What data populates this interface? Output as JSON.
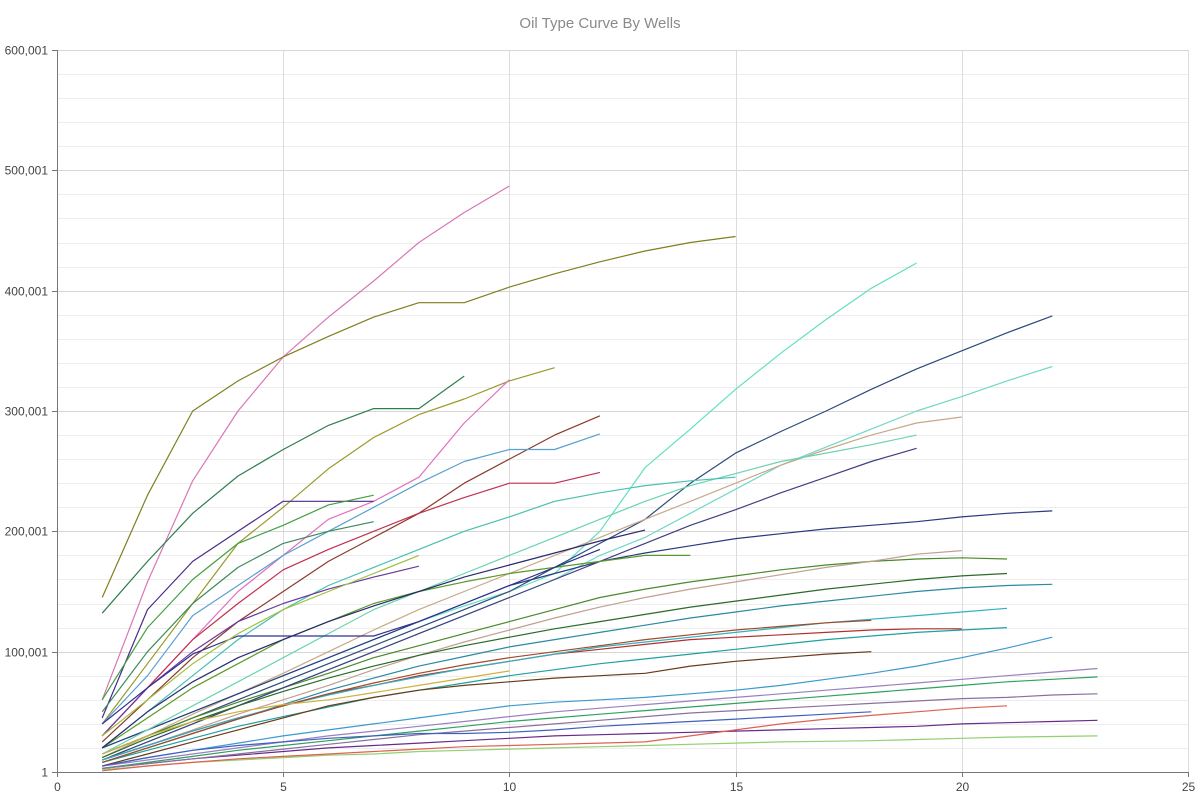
{
  "chart_data": {
    "type": "line",
    "title": "Oil Type Curve By Wells",
    "xlabel": "",
    "ylabel": "",
    "xlim": [
      0,
      25
    ],
    "ylim": [
      1,
      600001
    ],
    "x_ticks": [
      "0",
      "5",
      "10",
      "15",
      "20",
      "25"
    ],
    "y_ticks": [
      "1",
      "100,001",
      "200,001",
      "300,001",
      "400,001",
      "500,001",
      "600,001"
    ],
    "grid": true,
    "legend": "none",
    "x_start": 1,
    "series": [
      {
        "color": "#d977b5",
        "values": [
          60000,
          158000,
          242000,
          300000,
          345000,
          378000,
          408000,
          440000,
          465000,
          487000
        ]
      },
      {
        "color": "#7f7f1f",
        "values": [
          145000,
          230000,
          300000,
          325000,
          345000,
          362000,
          378000,
          390000,
          390000,
          403000,
          414000,
          424000,
          433000,
          440000,
          445000
        ]
      },
      {
        "color": "#5fe0c0",
        "values": [
          20000,
          35000,
          50000,
          65000,
          80000,
          95000,
          110000,
          125000,
          138000,
          150000,
          165000,
          200000,
          253000,
          285000,
          318000,
          348000,
          376000,
          402000,
          423000
        ]
      },
      {
        "color": "#2c4a7a",
        "values": [
          15000,
          30000,
          45000,
          60000,
          75000,
          90000,
          105000,
          120000,
          135000,
          150000,
          170000,
          190000,
          210000,
          240000,
          265000,
          283000,
          300000,
          318000,
          335000,
          350000,
          365000,
          379000
        ]
      },
      {
        "color": "#70d8c8",
        "values": [
          10000,
          25000,
          40000,
          55000,
          70000,
          85000,
          100000,
          115000,
          130000,
          145000,
          160000,
          180000,
          195000,
          215000,
          235000,
          255000,
          270000,
          285000,
          300000,
          312000,
          325000,
          337000
        ]
      },
      {
        "color": "#c8a88a",
        "values": [
          12000,
          30000,
          48000,
          65000,
          82000,
          100000,
          118000,
          135000,
          150000,
          165000,
          180000,
          195000,
          210000,
          225000,
          240000,
          255000,
          268000,
          280000,
          290000,
          295000
        ]
      },
      {
        "color": "#2e7d4f",
        "values": [
          132000,
          175000,
          215000,
          246000,
          268000,
          288000,
          302000,
          302000,
          329000
        ]
      },
      {
        "color": "#9a9a2a",
        "values": [
          40000,
          90000,
          140000,
          190000,
          220000,
          252000,
          278000,
          297000,
          310000,
          325000,
          336000
        ]
      },
      {
        "color": "#e070c0",
        "values": [
          30000,
          70000,
          110000,
          150000,
          180000,
          210000,
          225000,
          245000,
          290000,
          326000
        ]
      },
      {
        "color": "#8b3a2a",
        "values": [
          25000,
          60000,
          95000,
          125000,
          150000,
          175000,
          195000,
          215000,
          240000,
          260000,
          280000,
          296000
        ]
      },
      {
        "color": "#5aa0d0",
        "values": [
          40000,
          80000,
          130000,
          155000,
          180000,
          200000,
          220000,
          240000,
          258000,
          268000,
          268000,
          281000
        ]
      },
      {
        "color": "#c03050",
        "values": [
          30000,
          70000,
          110000,
          140000,
          168000,
          185000,
          200000,
          215000,
          228000,
          240000,
          240000,
          249000
        ]
      },
      {
        "color": "#283a80",
        "values": [
          20000,
          35000,
          50000,
          65000,
          80000,
          95000,
          110000,
          125000,
          140000,
          155000,
          165000,
          175000,
          182000,
          188000,
          194000,
          198000,
          202000,
          205000,
          208000,
          212000,
          215000,
          217000
        ]
      },
      {
        "color": "#4a8a2a",
        "values": [
          15000,
          30000,
          45000,
          58000,
          70000,
          82000,
          95000,
          105000,
          115000,
          125000,
          135000,
          145000,
          152000,
          158000,
          163000,
          168000,
          172000,
          175000,
          177000,
          178000,
          177000
        ]
      },
      {
        "color": "#6ad4b0",
        "values": [
          15000,
          35000,
          55000,
          75000,
          95000,
          115000,
          135000,
          150000,
          165000,
          180000,
          195000,
          210000,
          225000,
          238000,
          248000,
          258000,
          265000,
          272000,
          280000
        ]
      },
      {
        "color": "#404080",
        "values": [
          10000,
          25000,
          40000,
          55000,
          70000,
          85000,
          100000,
          115000,
          130000,
          145000,
          160000,
          175000,
          190000,
          205000,
          218000,
          232000,
          245000,
          258000,
          269000
        ]
      },
      {
        "color": "#4b2a8a",
        "values": [
          45000,
          135000,
          175000,
          200000,
          225000,
          225000,
          225000
        ]
      },
      {
        "color": "#40a040",
        "values": [
          60000,
          120000,
          160000,
          190000,
          205000,
          222000,
          230000
        ]
      },
      {
        "color": "#3a8a5a",
        "values": [
          50000,
          100000,
          140000,
          170000,
          190000,
          200000,
          208000
        ]
      },
      {
        "color": "#48c0b0",
        "values": [
          20000,
          50000,
          80000,
          110000,
          135000,
          155000,
          170000,
          185000,
          200000,
          212000,
          225000,
          232000,
          238000,
          242000,
          245000
        ]
      },
      {
        "color": "#5a9a2a",
        "values": [
          20000,
          45000,
          70000,
          90000,
          110000,
          125000,
          140000,
          150000,
          158000,
          165000,
          170000,
          175000,
          180000,
          180000
        ]
      },
      {
        "color": "#c0a090",
        "values": [
          10000,
          22000,
          35000,
          48000,
          60000,
          72000,
          85000,
          97000,
          108000,
          118000,
          128000,
          137000,
          145000,
          152000,
          158000,
          164000,
          170000,
          175000,
          181000,
          184000
        ]
      },
      {
        "color": "#2a8aa0",
        "values": [
          8000,
          20000,
          32000,
          44000,
          56000,
          68000,
          78000,
          88000,
          96000,
          104000,
          110000,
          116000,
          122000,
          128000,
          133000,
          138000,
          142000,
          146000,
          150000,
          153000,
          155000,
          156000
        ]
      },
      {
        "color": "#3a9ad0",
        "values": [
          5000,
          12000,
          18000,
          24000,
          30000,
          35000,
          40000,
          45000,
          50000,
          55000,
          58000,
          60000,
          62000,
          65000,
          68000,
          72000,
          77000,
          82000,
          88000,
          95000,
          103000,
          112000
        ]
      },
      {
        "color": "#9a80c0",
        "values": [
          5000,
          10000,
          15000,
          20000,
          25000,
          30000,
          34000,
          38000,
          42000,
          46000,
          50000,
          53000,
          56000,
          59000,
          62000,
          65000,
          68000,
          71000,
          74000,
          77000,
          80000,
          83000,
          86000
        ]
      },
      {
        "color": "#90d070",
        "values": [
          2000,
          5000,
          8000,
          10000,
          12000,
          14000,
          15000,
          17000,
          18000,
          19000,
          20000,
          21000,
          22000,
          23000,
          24000,
          25000,
          25500,
          26000,
          27000,
          28000,
          29000,
          29500,
          30000
        ]
      },
      {
        "color": "#6a2a8a",
        "values": [
          3000,
          7000,
          11000,
          14000,
          17000,
          20000,
          22000,
          24000,
          26000,
          28000,
          30000,
          31000,
          32000,
          33000,
          34000,
          35000,
          36000,
          37000,
          38000,
          40000,
          41000,
          42000,
          43000
        ]
      },
      {
        "color": "#e06050",
        "values": [
          1000,
          5000,
          8000,
          11000,
          13000,
          15000,
          17000,
          19000,
          21000,
          22000,
          23000,
          24000,
          25000,
          30000,
          35000,
          40000,
          44000,
          47000,
          50000,
          53000,
          55000
        ]
      },
      {
        "color": "#20a0a0",
        "values": [
          8000,
          18000,
          28000,
          38000,
          46000,
          54000,
          62000,
          68000,
          74000,
          80000,
          85000,
          90000,
          94000,
          98000,
          102000,
          106000,
          110000,
          113000,
          116000,
          118000,
          120000
        ]
      },
      {
        "color": "#30a060",
        "values": [
          3000,
          8000,
          13000,
          18000,
          22000,
          26000,
          30000,
          34000,
          38000,
          42000,
          45000,
          48000,
          51000,
          54000,
          57000,
          60000,
          63000,
          66000,
          69000,
          72000,
          75000,
          77000,
          79000
        ]
      },
      {
        "color": "#6a3a1a",
        "values": [
          5000,
          15000,
          25000,
          35000,
          45000,
          55000,
          62000,
          68000,
          72000,
          75000,
          78000,
          80000,
          82000,
          88000,
          92000,
          95000,
          98000,
          100000
        ]
      },
      {
        "color": "#b03030",
        "values": [
          10000,
          22000,
          34000,
          45000,
          55000,
          65000,
          72000,
          80000,
          86000,
          92000,
          98000,
          102000,
          106000,
          110000,
          112000,
          114000,
          116000,
          118000,
          119000,
          119000
        ]
      },
      {
        "color": "#6a3aa0",
        "values": [
          30000,
          70000,
          100000,
          125000,
          140000,
          152000,
          162000,
          171000
        ]
      },
      {
        "color": "#2a2a70",
        "values": [
          20000,
          50000,
          75000,
          95000,
          110000,
          125000,
          138000,
          150000,
          162000,
          172000,
          182000,
          192000,
          201000
        ]
      },
      {
        "color": "#30b0c0",
        "values": [
          10000,
          22000,
          34000,
          45000,
          55000,
          64000,
          72000,
          79000,
          86000,
          92000,
          98000,
          104000,
          108000,
          112000,
          116000,
          120000,
          124000,
          127000,
          130000,
          133000,
          136000
        ]
      },
      {
        "color": "#2a6a2a",
        "values": [
          12000,
          28000,
          42000,
          55000,
          67000,
          78000,
          88000,
          97000,
          105000,
          112000,
          119000,
          125000,
          131000,
          137000,
          142000,
          147000,
          152000,
          156000,
          160000,
          163000,
          165000
        ]
      },
      {
        "color": "#8a70a0",
        "values": [
          3000,
          7000,
          11000,
          15000,
          19000,
          23000,
          27000,
          31000,
          34000,
          37000,
          40000,
          43000,
          46000,
          49000,
          51000,
          53000,
          55000,
          57000,
          59000,
          61000,
          62000,
          64000,
          65000
        ]
      },
      {
        "color": "#a04a2a",
        "values": [
          8000,
          20000,
          32000,
          44000,
          55000,
          65000,
          74000,
          82000,
          89000,
          95000,
          100000,
          105000,
          110000,
          114000,
          118000,
          121000,
          124000,
          126000
        ]
      },
      {
        "color": "#303090",
        "values": [
          40000,
          70000,
          98000,
          113000,
          113000,
          113000,
          113000,
          125000,
          140000,
          155000,
          170000,
          185000
        ]
      },
      {
        "color": "#a0c040",
        "values": [
          30000,
          60000,
          90000,
          115000,
          135000,
          150000,
          165000,
          180000
        ]
      },
      {
        "color": "#d0b040",
        "values": [
          15000,
          30000,
          42000,
          50000,
          56000,
          60000,
          66000,
          72000,
          78000,
          84000
        ]
      },
      {
        "color": "#4060c0",
        "values": [
          5000,
          12000,
          18000,
          22000,
          25000,
          28000,
          30000,
          32000,
          32000,
          33000,
          35000,
          38000,
          40000,
          42000,
          44000,
          46000,
          48000,
          50000
        ]
      }
    ]
  }
}
